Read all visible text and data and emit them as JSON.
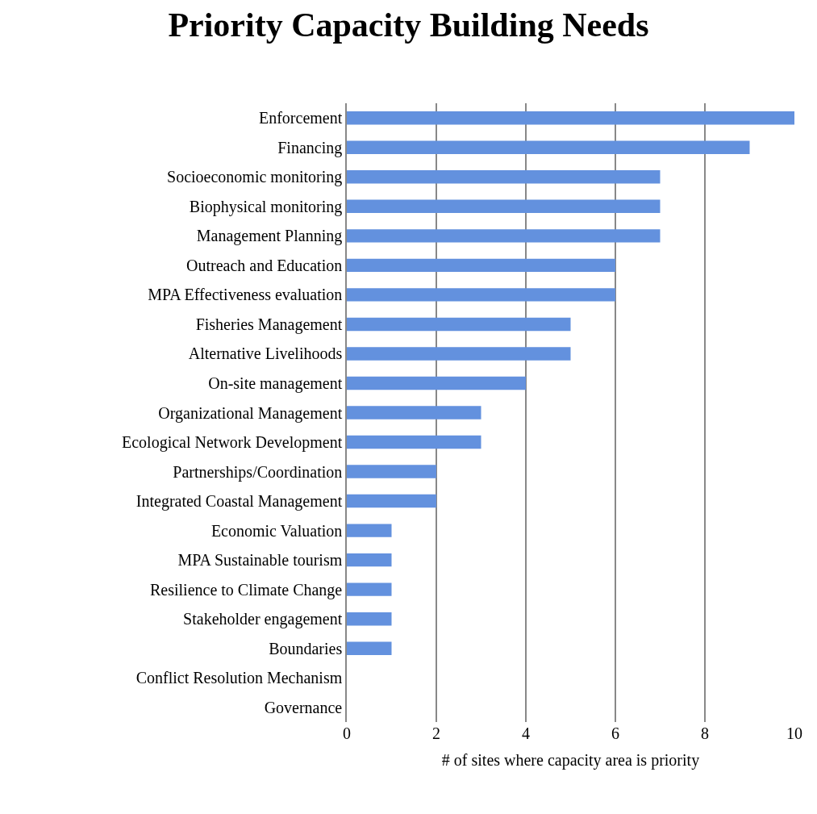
{
  "chart_data": {
    "type": "bar",
    "orientation": "horizontal",
    "title": "Priority Capacity Building Needs",
    "xlabel": "# of sites where capacity area is priority",
    "categories": [
      "Enforcement",
      "Financing",
      "Socioeconomic monitoring",
      "Biophysical monitoring",
      "Management Planning",
      "Outreach and Education",
      "MPA Effectiveness evaluation",
      "Fisheries Management",
      "Alternative Livelihoods",
      "On-site management",
      "Organizational Management",
      "Ecological Network Development",
      "Partnerships/Coordination",
      "Integrated Coastal Management",
      "Economic Valuation",
      "MPA Sustainable tourism",
      "Resilience to Climate Change",
      "Stakeholder engagement",
      "Boundaries",
      "Conflict Resolution Mechanism",
      "Governance"
    ],
    "values": [
      10,
      9,
      7,
      7,
      7,
      6,
      6,
      5,
      5,
      4,
      3,
      3,
      2,
      2,
      1,
      1,
      1,
      1,
      1,
      0,
      0
    ],
    "color": "#6391de",
    "xlim": [
      0,
      10
    ],
    "xticks": [
      0,
      2,
      4,
      6,
      8,
      10
    ],
    "grid": "x",
    "legend": false
  }
}
